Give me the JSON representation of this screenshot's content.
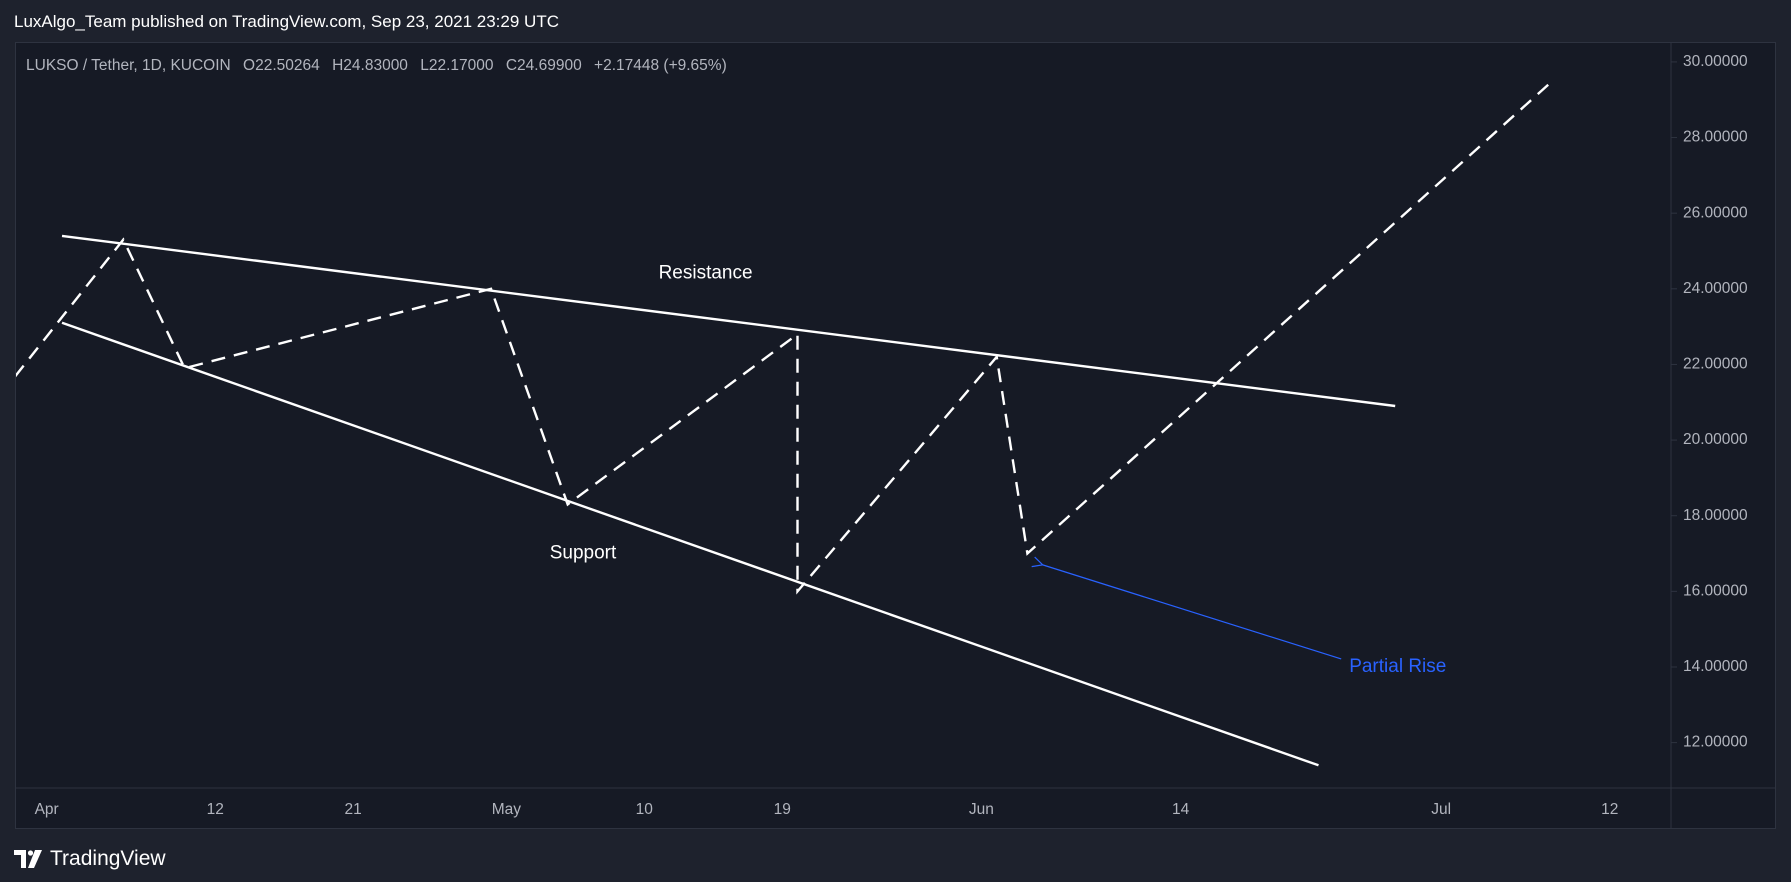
{
  "header": {
    "published_text": "LuxAlgo_Team published on TradingView.com, Sep 23, 2021 23:29 UTC"
  },
  "legend": {
    "symbol": "LUKSO / Tether, 1D, KUCOIN",
    "open_label": "O",
    "open_value": "22.50264",
    "high_label": "H",
    "high_value": "24.83000",
    "low_label": "L",
    "low_value": "22.17000",
    "close_label": "C",
    "close_value": "24.69900",
    "change": "+2.17448 (+9.65%)"
  },
  "footer": {
    "brand": "TradingView"
  },
  "colors": {
    "page_bg": "#1e222d",
    "chart_bg": "#161a25",
    "text": "#ffffff",
    "axis_text": "#b2b5be",
    "annotation_blue": "#2962ff",
    "line": "#ffffff"
  },
  "chart_data": {
    "type": "line",
    "x_axis": {
      "type": "date",
      "tick_labels": [
        "Apr",
        "12",
        "21",
        "May",
        "10",
        "19",
        "Jun",
        "14",
        "Jul",
        "12"
      ],
      "tick_dates": [
        "2021-04-01",
        "2021-04-12",
        "2021-04-21",
        "2021-05-01",
        "2021-05-10",
        "2021-05-19",
        "2021-06-01",
        "2021-06-14",
        "2021-07-01",
        "2021-07-12"
      ],
      "range": [
        "2021-03-30",
        "2021-07-16"
      ]
    },
    "y_axis": {
      "position": "right",
      "tick_labels": [
        "12.00000",
        "14.00000",
        "16.00000",
        "18.00000",
        "20.00000",
        "22.00000",
        "24.00000",
        "26.00000",
        "28.00000",
        "30.00000"
      ],
      "tick_values": [
        12,
        14,
        16,
        18,
        20,
        22,
        24,
        26,
        28,
        30
      ],
      "range": [
        10.8,
        30.5
      ]
    },
    "grid": false,
    "series": [
      {
        "style": "dashed",
        "x": [
          "2021-03-29",
          "2021-04-06",
          "2021-04-10",
          "2021-04-30",
          "2021-05-05",
          "2021-05-20",
          "2021-05-20",
          "2021-06-02",
          "2021-06-04",
          "2021-07-08"
        ],
        "y": [
          21.2,
          25.3,
          21.9,
          24.0,
          18.3,
          22.8,
          16.0,
          22.2,
          17.0,
          29.4
        ]
      },
      {
        "style": "solid",
        "x": [
          "2021-04-02",
          "2021-06-28"
        ],
        "y": [
          25.4,
          20.9
        ]
      },
      {
        "style": "solid",
        "x": [
          "2021-04-02",
          "2021-06-23"
        ],
        "y": [
          23.1,
          11.4
        ]
      }
    ],
    "annotations": [
      {
        "text": "Resistance",
        "x": "2021-05-14",
        "y": 24.4,
        "color": "#ffffff"
      },
      {
        "text": "Support",
        "x": "2021-05-06",
        "y": 17.0,
        "color": "#ffffff"
      },
      {
        "text": "Partial Rise",
        "x": "2021-06-25",
        "y": 14.0,
        "color": "#2962ff",
        "arrow_to": {
          "x": "2021-06-05",
          "y": 16.7
        }
      }
    ]
  }
}
